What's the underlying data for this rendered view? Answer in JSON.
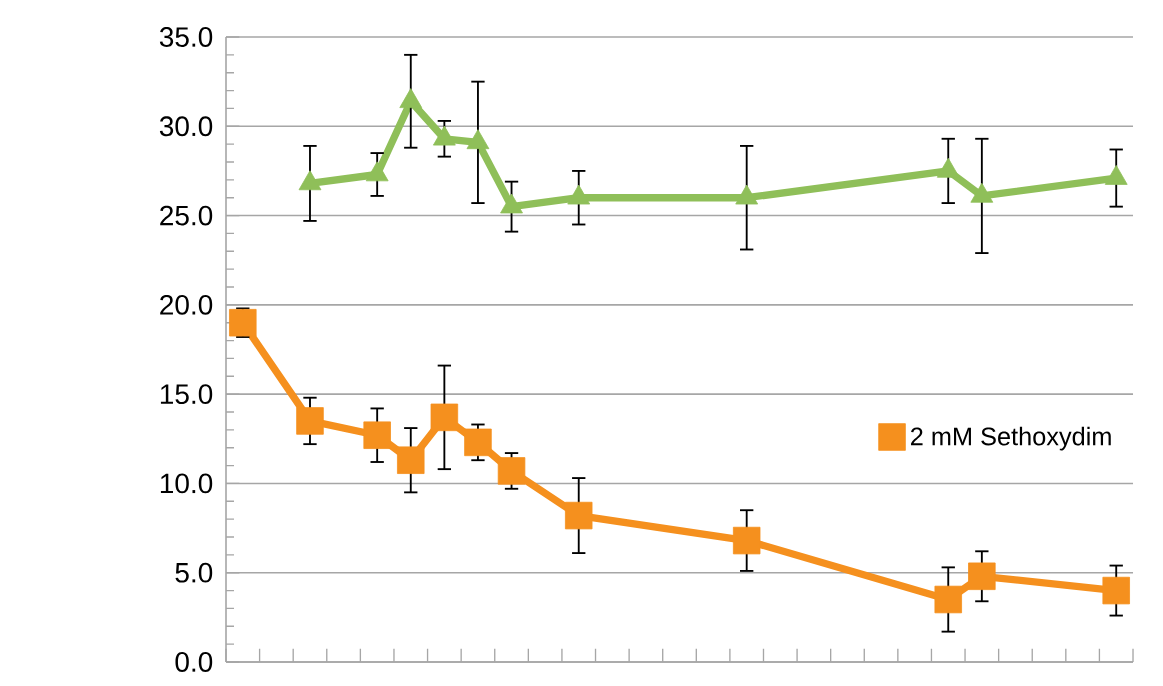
{
  "chart_data": {
    "type": "line",
    "categories": [
      null,
      null,
      null,
      null,
      null,
      null,
      null,
      null,
      null,
      null,
      null,
      null,
      null,
      null,
      null,
      null,
      null,
      null,
      null,
      null,
      null,
      null,
      null,
      null,
      null,
      null,
      null
    ],
    "ylim": [
      0,
      35
    ],
    "yticks": [
      {
        "value": 0,
        "label": "0.0"
      },
      {
        "value": 5,
        "label": "5.0"
      },
      {
        "value": 10,
        "label": "10.0"
      },
      {
        "value": 15,
        "label": "15.0"
      },
      {
        "value": 20,
        "label": "20.0"
      },
      {
        "value": 25,
        "label": "25.0"
      },
      {
        "value": 30,
        "label": "30.0"
      },
      {
        "value": 35,
        "label": "35.0"
      }
    ],
    "tick_labels": "y",
    "grid": "y",
    "legend": "right",
    "series": [
      {
        "color": "#8fbf59",
        "marker": "triangle",
        "values": [
          null,
          null,
          26.8,
          null,
          27.3,
          31.4,
          29.3,
          29.1,
          25.5,
          null,
          26.0,
          null,
          null,
          null,
          null,
          26.0,
          null,
          null,
          null,
          null,
          null,
          27.5,
          26.1,
          null,
          null,
          null,
          27.1
        ],
        "errors": [
          null,
          null,
          2.1,
          null,
          1.2,
          2.6,
          1.0,
          3.4,
          1.4,
          null,
          1.5,
          null,
          null,
          null,
          null,
          2.9,
          null,
          null,
          null,
          null,
          null,
          1.8,
          3.2,
          null,
          null,
          null,
          1.6
        ]
      },
      {
        "name": "2 mM Sethoxydim",
        "color": "#f5901e",
        "marker": "square",
        "values": [
          19.0,
          null,
          13.5,
          null,
          12.7,
          11.3,
          13.7,
          12.3,
          10.7,
          null,
          8.2,
          null,
          null,
          null,
          null,
          6.8,
          null,
          null,
          null,
          null,
          null,
          3.5,
          4.8,
          null,
          null,
          null,
          4.0
        ],
        "errors": [
          0.8,
          null,
          1.3,
          null,
          1.5,
          1.8,
          2.9,
          1.0,
          1.0,
          null,
          2.1,
          null,
          null,
          null,
          null,
          1.7,
          null,
          null,
          null,
          null,
          null,
          1.8,
          1.4,
          null,
          null,
          null,
          1.4
        ]
      }
    ]
  }
}
